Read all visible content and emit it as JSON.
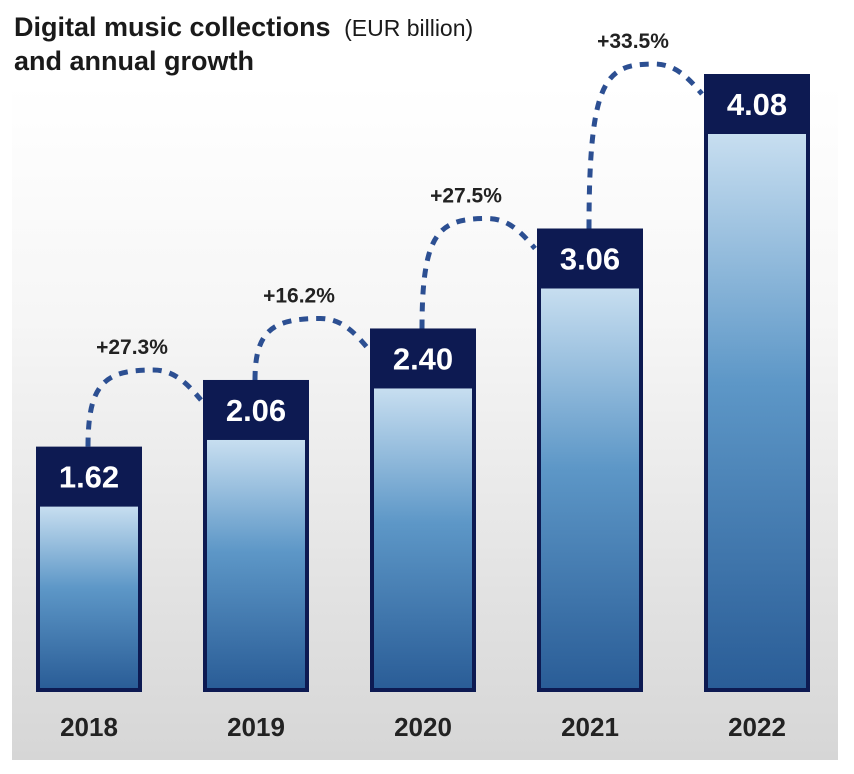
{
  "chart_data": {
    "type": "bar",
    "title": "Digital music collections",
    "title_unit": "(EUR billion)",
    "subtitle": "and annual growth",
    "categories": [
      "2018",
      "2019",
      "2020",
      "2021",
      "2022"
    ],
    "values": [
      1.62,
      2.06,
      2.4,
      3.06,
      4.08
    ],
    "value_labels": [
      "1.62",
      "2.06",
      "2.40",
      "3.06",
      "4.08"
    ],
    "growth": [
      "+27.3%",
      "+16.2%",
      "+27.5%",
      "+33.5%"
    ],
    "ylim": [
      0,
      4.08
    ],
    "grid": false,
    "legend": "none",
    "colors": {
      "bar_dark": "#0d1a52",
      "bar_light": "#c7def0",
      "bar_mid": "#5d97c7",
      "bar_deep": "#2a5d97",
      "connector": "#2c4f92",
      "bg_fade": "#d9d9d9"
    }
  }
}
